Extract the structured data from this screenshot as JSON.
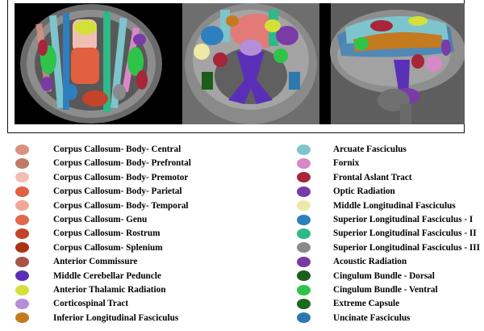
{
  "legend_left": [
    {
      "label": "Corpus Callosum- Body- Central",
      "color": "#d99282"
    },
    {
      "label": "Corpus Callosum- Body- Prefrontal",
      "color": "#bf7a6a"
    },
    {
      "label": "Corpus Callosum- Body- Premotor",
      "color": "#f0bfb4"
    },
    {
      "label": "Corpus Callosum- Body- Parietal",
      "color": "#e06040"
    },
    {
      "label": "Corpus Callosum- Body- Temporal",
      "color": "#f2a896"
    },
    {
      "label": "Corpus Callosum- Genu",
      "color": "#e2674a"
    },
    {
      "label": "Corpus Callosum- Rostrum",
      "color": "#c4432a"
    },
    {
      "label": "Corpus Callosum- Splenium",
      "color": "#a83414"
    },
    {
      "label": "Anterior Commissure",
      "color": "#a9534d"
    },
    {
      "label": "Middle Cerebellar Peduncle",
      "color": "#5a2fb8"
    },
    {
      "label": "Anterior Thalamic Radiation",
      "color": "#d4e03a"
    },
    {
      "label": "Corticospinal Tract",
      "color": "#b48ed6"
    },
    {
      "label": "Inferior Longitudinal Fasciculus",
      "color": "#c47a1e"
    }
  ],
  "legend_right": [
    {
      "label": "Arcuate Fasciculus",
      "color": "#7ec4cc"
    },
    {
      "label": "Fornix",
      "color": "#d888c8"
    },
    {
      "label": "Frontal Aslant Tract",
      "color": "#a8253a"
    },
    {
      "label": "Optic Radiation",
      "color": "#7a3aa8"
    },
    {
      "label": "Middle Longitudinal Fasciculus",
      "color": "#efe9a6"
    },
    {
      "label": "Superior Longitudinal Fasciculus - I",
      "color": "#2e7fbf"
    },
    {
      "label": "Superior Longitudinal Fasciculus - II",
      "color": "#2fb888"
    },
    {
      "label": "Superior Longitudinal Fasciculus - III",
      "color": "#8a8a8a"
    },
    {
      "label": "Acoustic Radiation",
      "color": "#7a3aa0"
    },
    {
      "label": "Cingulum Bundle - Dorsal",
      "color": "#1a5e1a"
    },
    {
      "label": "Cingulum Bundle - Ventral",
      "color": "#2ec44a"
    },
    {
      "label": "Extreme Capsule",
      "color": "#1c6a1c"
    },
    {
      "label": "Uncinate Fasciculus",
      "color": "#2e78b0"
    }
  ]
}
